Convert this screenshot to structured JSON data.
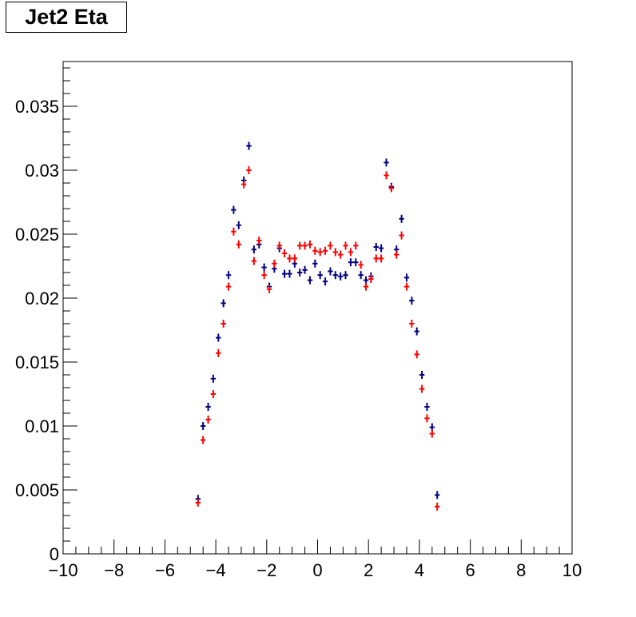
{
  "title": "Jet2 Eta",
  "chart_data": {
    "type": "scatter",
    "title": "Jet2 Eta",
    "xlabel": "",
    "ylabel": "",
    "xlim": [
      -10,
      10
    ],
    "ylim": [
      0,
      0.0385
    ],
    "x_ticks": [
      -10,
      -8,
      -6,
      -4,
      -2,
      0,
      2,
      4,
      6,
      8,
      10
    ],
    "x_tick_labels": [
      "−10",
      "−8",
      "−6",
      "−4",
      "−2",
      "0",
      "2",
      "4",
      "6",
      "8",
      "10"
    ],
    "y_ticks": [
      0,
      0.005,
      0.01,
      0.015,
      0.02,
      0.025,
      0.03,
      0.035
    ],
    "y_tick_labels": [
      "0",
      "0.005",
      "0.01",
      "0.015",
      "0.02",
      "0.025",
      "0.03",
      "0.035"
    ],
    "grid": false,
    "legend": "none",
    "bin_width": 0.2,
    "series": [
      {
        "color": "#000080",
        "x": [
          -4.7,
          -4.5,
          -4.3,
          -4.1,
          -3.9,
          -3.7,
          -3.5,
          -3.3,
          -3.1,
          -2.9,
          -2.7,
          -2.5,
          -2.3,
          -2.1,
          -1.9,
          -1.7,
          -1.5,
          -1.3,
          -1.1,
          -0.9,
          -0.7,
          -0.5,
          -0.3,
          -0.1,
          0.1,
          0.3,
          0.5,
          0.7,
          0.9,
          1.1,
          1.3,
          1.5,
          1.7,
          1.9,
          2.1,
          2.3,
          2.5,
          2.7,
          2.9,
          3.1,
          3.3,
          3.5,
          3.7,
          3.9,
          4.1,
          4.3,
          4.5,
          4.7
        ],
        "y": [
          0.0043,
          0.01,
          0.0115,
          0.0137,
          0.0169,
          0.0196,
          0.0218,
          0.0269,
          0.0257,
          0.0292,
          0.0319,
          0.0238,
          0.0242,
          0.0224,
          0.0209,
          0.0223,
          0.0239,
          0.0219,
          0.0219,
          0.0227,
          0.022,
          0.0222,
          0.0214,
          0.0227,
          0.0218,
          0.0213,
          0.0221,
          0.0218,
          0.0217,
          0.0218,
          0.0228,
          0.0228,
          0.0218,
          0.0214,
          0.0217,
          0.024,
          0.0239,
          0.0306,
          0.0287,
          0.0238,
          0.0262,
          0.0216,
          0.0198,
          0.0174,
          0.014,
          0.0115,
          0.0099,
          0.0046
        ]
      },
      {
        "color": "#ff0000",
        "x": [
          -4.7,
          -4.5,
          -4.3,
          -4.1,
          -3.9,
          -3.7,
          -3.5,
          -3.3,
          -3.1,
          -2.9,
          -2.7,
          -2.5,
          -2.3,
          -2.1,
          -1.9,
          -1.7,
          -1.5,
          -1.3,
          -1.1,
          -0.9,
          -0.7,
          -0.5,
          -0.3,
          -0.1,
          0.1,
          0.3,
          0.5,
          0.7,
          0.9,
          1.1,
          1.3,
          1.5,
          1.7,
          1.9,
          2.1,
          2.3,
          2.5,
          2.7,
          2.9,
          3.1,
          3.3,
          3.5,
          3.7,
          3.9,
          4.1,
          4.3,
          4.5,
          4.7
        ],
        "y": [
          0.004,
          0.0089,
          0.0105,
          0.0125,
          0.0157,
          0.018,
          0.0209,
          0.0252,
          0.0242,
          0.0289,
          0.03,
          0.0229,
          0.0245,
          0.0218,
          0.0207,
          0.0227,
          0.0241,
          0.0235,
          0.0231,
          0.0231,
          0.0241,
          0.0241,
          0.0242,
          0.0237,
          0.0236,
          0.0237,
          0.0241,
          0.0236,
          0.0234,
          0.0241,
          0.0236,
          0.0241,
          0.0226,
          0.0209,
          0.0215,
          0.0231,
          0.0231,
          0.0296,
          0.0286,
          0.0234,
          0.0249,
          0.0209,
          0.018,
          0.0156,
          0.0129,
          0.0106,
          0.0094,
          0.0037
        ]
      }
    ]
  }
}
